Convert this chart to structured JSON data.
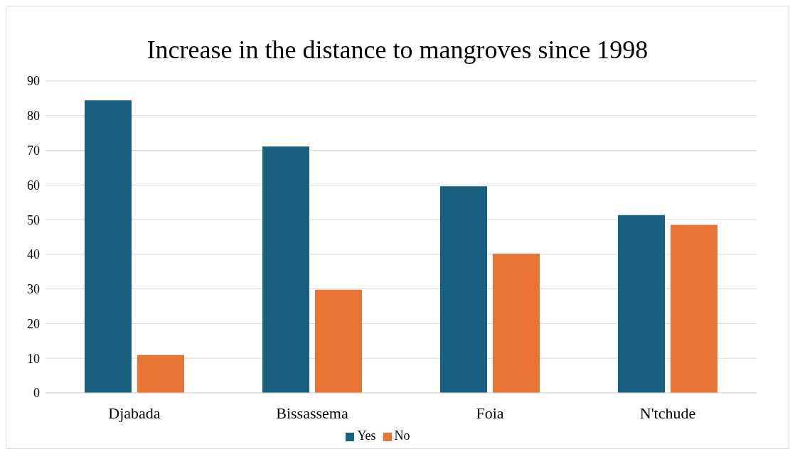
{
  "chart_data": {
    "type": "bar",
    "title": "Increase in the distance to mangroves since 1998",
    "categories": [
      "Djabada",
      "Bissassema",
      "Foia",
      "N'tchude"
    ],
    "series": [
      {
        "name": "Yes",
        "color": "#17607f",
        "values": [
          84.4,
          71.1,
          59.6,
          51.3
        ]
      },
      {
        "name": "No",
        "color": "#e87434",
        "values": [
          10.9,
          29.8,
          40.2,
          48.5
        ]
      }
    ],
    "ylim": [
      0,
      90
    ],
    "yticks": [
      0,
      10,
      20,
      30,
      40,
      50,
      60,
      70,
      80,
      90
    ],
    "grid": "y",
    "legend": "bottom"
  }
}
